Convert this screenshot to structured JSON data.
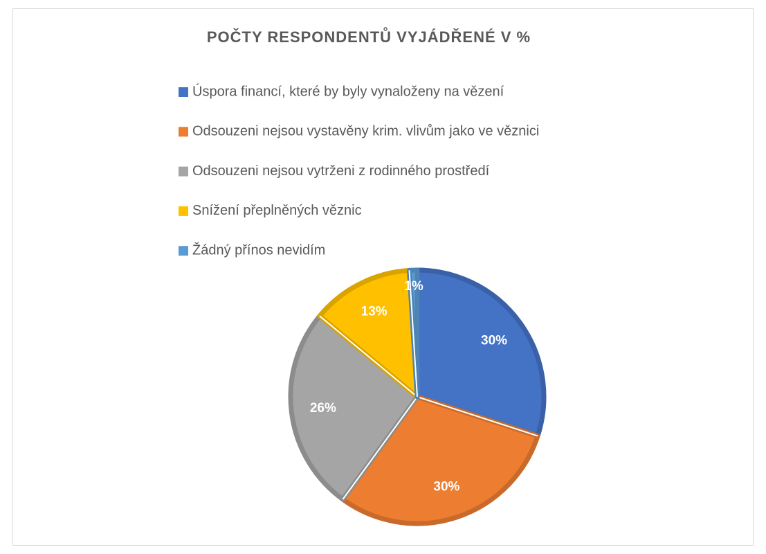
{
  "chart_data": {
    "type": "pie",
    "title": "POČTY RESPONDENTŮ VYJÁDŘENÉ V %",
    "categories": [
      "Úspora financí, které by byly vynaloženy na vězení",
      "Odsouzeni nejsou vystavěny krim. vlivům jako ve věznici",
      "Odsouzeni nejsou vytrženi z rodinného prostředí",
      "Snížení přeplněných věznic",
      "Žádný přínos nevidím"
    ],
    "values": [
      30,
      30,
      26,
      13,
      1
    ],
    "value_labels": [
      "30%",
      "30%",
      "26%",
      "13%",
      "1%"
    ],
    "colors": [
      "#4472c4",
      "#ed7d31",
      "#a5a5a5",
      "#ffc000",
      "#5b9bd5"
    ],
    "legend": "top-left"
  }
}
